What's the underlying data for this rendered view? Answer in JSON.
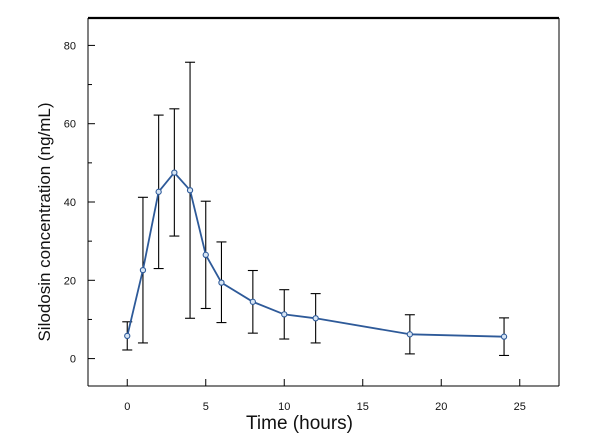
{
  "chart_data": {
    "type": "line",
    "title": "",
    "xlabel": "Time (hours)",
    "ylabel": "Silodosin concentration (ng/mL)",
    "xlim": [
      -2.5,
      27.5
    ],
    "ylim": [
      -7,
      87
    ],
    "x_ticks": [
      0,
      5,
      10,
      15,
      20,
      25
    ],
    "y_ticks": [
      0,
      20,
      40,
      60,
      80
    ],
    "y_minor_ticks": [
      10,
      30,
      50,
      70
    ],
    "x_tick_labels": [
      "0",
      "5",
      "10",
      "15",
      "20",
      "25"
    ],
    "y_tick_labels": [
      "0",
      "20",
      "40",
      "60",
      "80"
    ],
    "grid": false,
    "legend": "none",
    "series": [
      {
        "color": "#2e5a99",
        "marker_fill": "#d8e6f5",
        "points": [
          {
            "x": 0,
            "y": 5.8,
            "err_low": 2.2,
            "err_high": 9.4
          },
          {
            "x": 1,
            "y": 22.6,
            "err_low": 4.0,
            "err_high": 41.2
          },
          {
            "x": 2,
            "y": 42.6,
            "err_low": 23.0,
            "err_high": 62.2
          },
          {
            "x": 3,
            "y": 47.5,
            "err_low": 31.3,
            "err_high": 63.8
          },
          {
            "x": 4,
            "y": 43.0,
            "err_low": 10.3,
            "err_high": 75.7
          },
          {
            "x": 5,
            "y": 26.5,
            "err_low": 12.8,
            "err_high": 40.2
          },
          {
            "x": 6,
            "y": 19.4,
            "err_low": 9.2,
            "err_high": 29.8
          },
          {
            "x": 8,
            "y": 14.5,
            "err_low": 6.5,
            "err_high": 22.5
          },
          {
            "x": 10,
            "y": 11.3,
            "err_low": 5.0,
            "err_high": 17.6
          },
          {
            "x": 12,
            "y": 10.3,
            "err_low": 4.0,
            "err_high": 16.6
          },
          {
            "x": 18,
            "y": 6.2,
            "err_low": 1.2,
            "err_high": 11.2
          },
          {
            "x": 24,
            "y": 5.6,
            "err_low": 0.8,
            "err_high": 10.4
          }
        ]
      }
    ]
  }
}
